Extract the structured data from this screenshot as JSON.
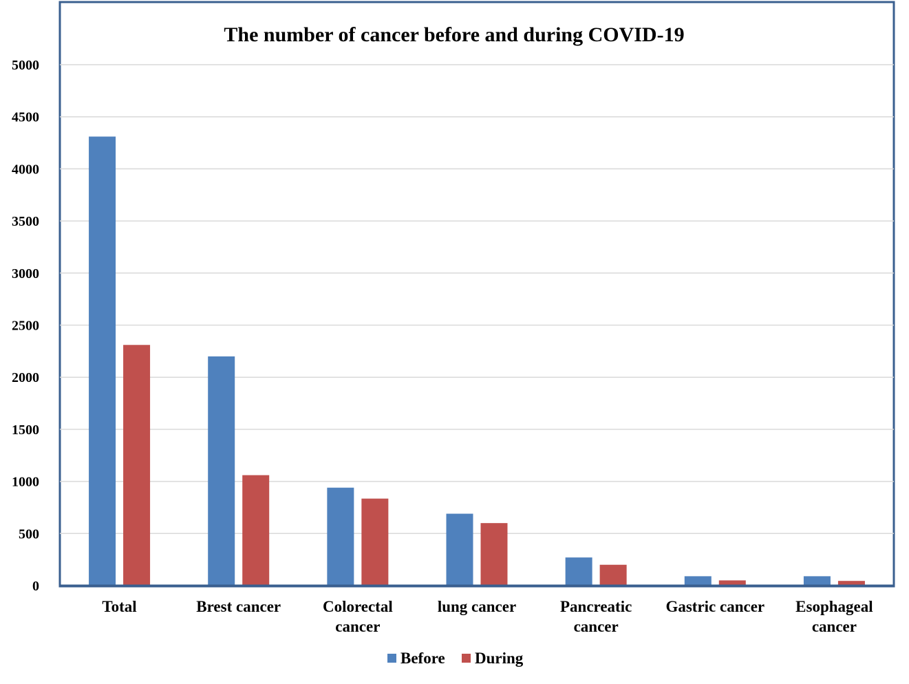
{
  "chart_data": {
    "type": "bar",
    "title": "The number of cancer before and during COVID-19",
    "xlabel": "",
    "ylabel": "",
    "categories": [
      "Total",
      "Brest cancer",
      "Colorectal cancer",
      "lung cancer",
      "Pancreatic cancer",
      "Gastric cancer",
      "Esophageal cancer"
    ],
    "y_ticks": [
      "0",
      "500",
      "1000",
      "1500",
      "2000",
      "2500",
      "3000",
      "3500",
      "4000",
      "4500",
      "5000"
    ],
    "series": [
      {
        "name": "Before",
        "color": "#4f81bd",
        "values": [
          4310,
          2200,
          940,
          690,
          270,
          90,
          90
        ]
      },
      {
        "name": "During",
        "color": "#c0504d",
        "values": [
          2310,
          1060,
          835,
          600,
          200,
          50,
          45
        ]
      }
    ],
    "ylim": [
      0,
      5000
    ],
    "grid": true,
    "legend_position": "bottom",
    "frame_color": "#3a5f8f",
    "grid_color": "#d9d9d9",
    "axis_color": "#3a5f8f"
  }
}
